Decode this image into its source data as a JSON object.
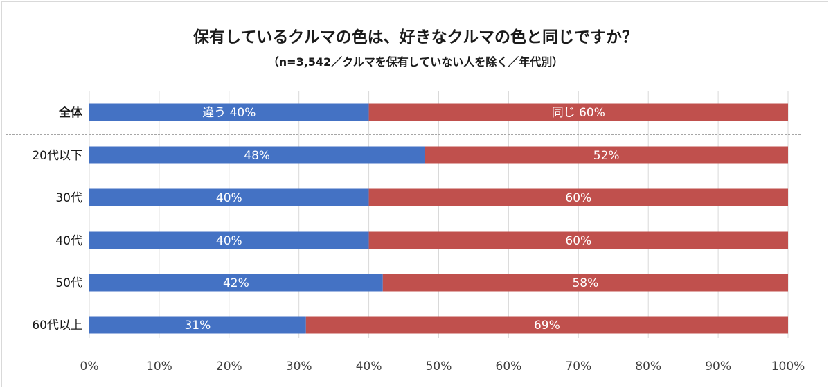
{
  "chart_data": {
    "type": "bar",
    "orientation": "horizontal",
    "stacked": "percent",
    "title": "保有しているクルマの色は、好きなクルマの色と同じですか？",
    "subtitle": "（n=3,542／クルマを保有していない人を除く／年代別）",
    "categories": [
      "全体",
      "20代以下",
      "30代",
      "40代",
      "50代",
      "60代以上"
    ],
    "series": [
      {
        "name": "違う",
        "color": "#4472c4",
        "values": [
          40,
          48,
          40,
          40,
          42,
          31
        ]
      },
      {
        "name": "同じ",
        "color": "#c0504d",
        "values": [
          60,
          52,
          60,
          60,
          58,
          69
        ]
      }
    ],
    "data_labels": [
      [
        "違う 40%",
        "同じ 60%"
      ],
      [
        "48%",
        "52%"
      ],
      [
        "40%",
        "60%"
      ],
      [
        "40%",
        "60%"
      ],
      [
        "42%",
        "58%"
      ],
      [
        "31%",
        "69%"
      ]
    ],
    "xlim": [
      0,
      100
    ],
    "x_ticks": [
      "0%",
      "10%",
      "20%",
      "30%",
      "40%",
      "50%",
      "60%",
      "70%",
      "80%",
      "90%",
      "100%"
    ],
    "grid": "vertical",
    "legend": "none"
  }
}
